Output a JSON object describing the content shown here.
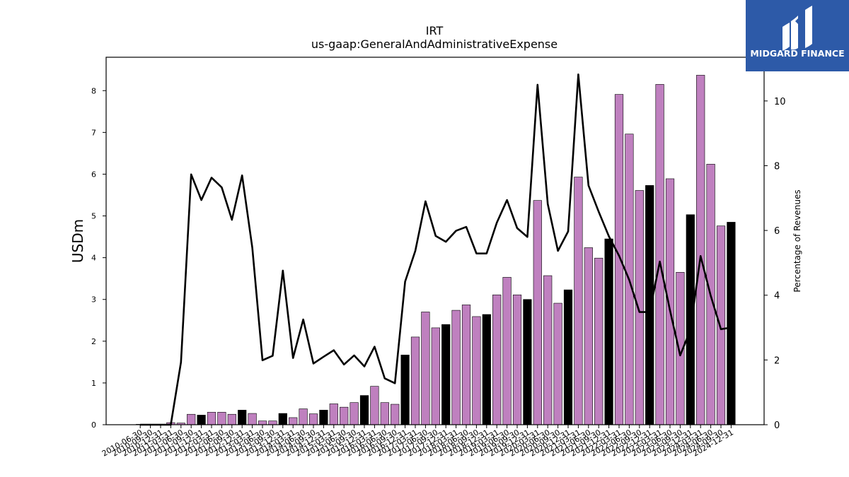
{
  "chart_data": {
    "type": "bar",
    "title": "IRT",
    "subtitle": "us-gaap:GeneralAndAdministrativeExpense",
    "ylabel": "USDm",
    "y2label": "Percentage of Revenues",
    "ylim": [
      0,
      8.8
    ],
    "y2lim": [
      0,
      11.35
    ],
    "yticks": [
      0,
      1,
      2,
      3,
      4,
      5,
      6,
      7,
      8
    ],
    "y2ticks": [
      0,
      2,
      4,
      6,
      8,
      10
    ],
    "grid": false,
    "legend": "none",
    "colors": {
      "quarter": "#bf80bf",
      "annual": "#000000",
      "line": "#000000"
    },
    "categories": [
      "2010-06-30",
      "2010-09-30",
      "2010-12-31",
      "2011-03-31",
      "2011-06-30",
      "2011-09-30",
      "2011-12-31",
      "2012-03-31",
      "2012-06-30",
      "2012-09-30",
      "2012-12-31",
      "2013-03-31",
      "2013-06-30",
      "2013-09-30",
      "2013-12-31",
      "2014-03-31",
      "2014-06-30",
      "2014-09-30",
      "2014-12-31",
      "2015-03-31",
      "2015-06-30",
      "2015-09-30",
      "2015-12-31",
      "2016-03-31",
      "2016-06-30",
      "2016-09-30",
      "2016-12-31",
      "2017-03-31",
      "2017-06-30",
      "2017-09-30",
      "2017-12-31",
      "2018-03-31",
      "2018-06-30",
      "2018-09-30",
      "2018-12-31",
      "2019-03-31",
      "2019-06-30",
      "2019-09-30",
      "2019-12-31",
      "2020-03-31",
      "2020-06-30",
      "2020-09-30",
      "2020-12-31",
      "2021-03-31",
      "2021-06-30",
      "2021-09-30",
      "2021-12-31",
      "2022-03-31",
      "2022-06-30",
      "2022-09-30",
      "2022-12-31",
      "2023-03-31",
      "2023-06-30",
      "2023-09-30",
      "2023-12-31",
      "2024-03-31",
      "2024-06-30",
      "2024-09-30",
      "2024-12-31"
    ],
    "series": [
      {
        "kind": "bar",
        "values": [
          0.01,
          0.01,
          0.01,
          0.05,
          0.04,
          0.25,
          0.23,
          0.3,
          0.3,
          0.25,
          0.35,
          0.27,
          0.09,
          0.09,
          0.27,
          0.17,
          0.38,
          0.26,
          0.35,
          0.5,
          0.42,
          0.53,
          0.7,
          0.92,
          0.53,
          0.49,
          1.67,
          2.1,
          2.7,
          2.32,
          2.4,
          2.74,
          2.87,
          2.59,
          2.64,
          3.11,
          3.53,
          3.11,
          3.0,
          5.37,
          3.57,
          2.91,
          3.23,
          5.93,
          4.24,
          3.99,
          4.45,
          7.91,
          6.96,
          5.61,
          5.73,
          8.15,
          5.89,
          3.65,
          5.03,
          8.37,
          6.24,
          4.76,
          4.85
        ],
        "annual": [
          0,
          0,
          0,
          0,
          0,
          0,
          1,
          0,
          0,
          0,
          1,
          0,
          0,
          0,
          1,
          0,
          0,
          0,
          1,
          0,
          0,
          0,
          1,
          0,
          0,
          0,
          1,
          0,
          0,
          0,
          1,
          0,
          0,
          0,
          1,
          0,
          0,
          0,
          1,
          0,
          0,
          0,
          1,
          0,
          0,
          0,
          1,
          0,
          0,
          0,
          1,
          0,
          0,
          0,
          1,
          0,
          0,
          0,
          1
        ]
      },
      {
        "kind": "line",
        "axis": "right",
        "values": [
          0,
          0,
          0,
          0,
          1.93,
          7.73,
          6.94,
          7.63,
          7.33,
          6.33,
          7.7,
          5.47,
          1.99,
          2.13,
          4.76,
          2.06,
          3.25,
          1.89,
          2.1,
          2.3,
          1.86,
          2.14,
          1.8,
          2.41,
          1.43,
          1.28,
          4.42,
          5.37,
          6.9,
          5.83,
          5.65,
          5.99,
          6.11,
          5.29,
          5.29,
          6.24,
          6.94,
          6.07,
          5.8,
          10.5,
          6.82,
          5.37,
          5.97,
          10.82,
          7.39,
          6.58,
          5.82,
          5.22,
          4.47,
          3.48,
          3.48,
          5.04,
          3.53,
          2.14,
          2.93,
          5.21,
          3.98,
          2.95,
          3.0
        ]
      }
    ]
  },
  "logo": {
    "text": "MIDGARD FINANCE"
  }
}
